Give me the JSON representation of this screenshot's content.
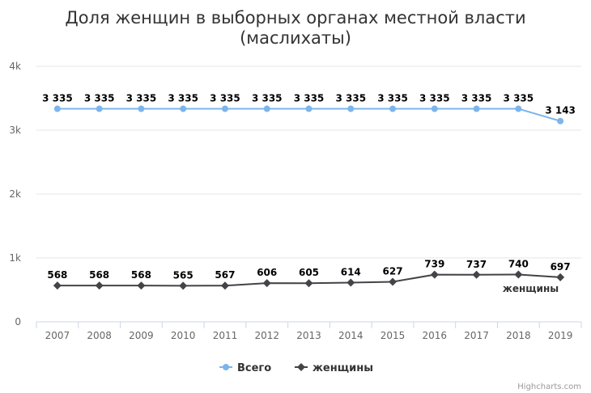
{
  "chart_data": {
    "type": "line",
    "title": [
      "Доля женщин в выборных органах местной власти",
      "(маслихаты)"
    ],
    "categories": [
      "2007",
      "2008",
      "2009",
      "2010",
      "2011",
      "2012",
      "2013",
      "2014",
      "2015",
      "2016",
      "2017",
      "2018",
      "2019"
    ],
    "yticks": [
      "0",
      "1k",
      "2k",
      "3k",
      "4k"
    ],
    "ylim": [
      0,
      4000
    ],
    "grid": true,
    "legend_position": "bottom",
    "series": [
      {
        "name": "Всего",
        "color": "#7cb5ec",
        "values": [
          3335,
          3335,
          3335,
          3335,
          3335,
          3335,
          3335,
          3335,
          3335,
          3335,
          3335,
          3335,
          3143
        ],
        "labels": [
          "3 335",
          "3 335",
          "3 335",
          "3 335",
          "3 335",
          "3 335",
          "3 335",
          "3 335",
          "3 335",
          "3 335",
          "3 335",
          "3 335",
          "3 143"
        ],
        "marker": "circle"
      },
      {
        "name": "женщины",
        "color": "#434348",
        "values": [
          568,
          568,
          568,
          565,
          567,
          606,
          605,
          614,
          627,
          739,
          737,
          740,
          697
        ],
        "labels": [
          "568",
          "568",
          "568",
          "565",
          "567",
          "606",
          "605",
          "614",
          "627",
          "739",
          "737",
          "740",
          "697"
        ],
        "marker": "diamond",
        "end_label": "женщины"
      }
    ],
    "credits": "Highcharts.com"
  }
}
